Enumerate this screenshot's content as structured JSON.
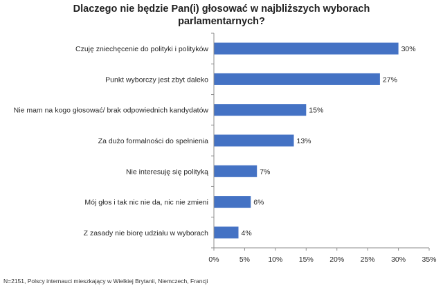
{
  "chart_data": {
    "type": "bar",
    "orientation": "horizontal",
    "title": "Dlaczego nie będzie Pan(i) głosować w najbliższych wyborach parlamentarnych?",
    "title_lines": [
      "Dlaczego nie będzie Pan(i) głosować w najbliższych wyborach",
      "parlamentarnych?"
    ],
    "categories": [
      "Czuję zniechęcenie do polityki i polityków",
      "Punkt wyborczy jest zbyt daleko",
      "Nie mam na kogo głosować/ brak odpowiednich kandydatów",
      "Za dużo formalności do spełnienia",
      "Nie interesuję się polityką",
      "Mój głos i tak nic nie da, nic nie zmieni",
      "Z zasady nie biorę udziału w wyborach"
    ],
    "values": [
      30,
      27,
      15,
      13,
      7,
      6,
      4
    ],
    "value_labels": [
      "30%",
      "27%",
      "15%",
      "13%",
      "7%",
      "6%",
      "4%"
    ],
    "xlim": [
      0,
      35
    ],
    "xticks": [
      0,
      5,
      10,
      15,
      20,
      25,
      30,
      35
    ],
    "xtick_labels": [
      "0%",
      "5%",
      "10%",
      "15%",
      "20%",
      "25%",
      "30%",
      "35%"
    ],
    "xlabel": "",
    "ylabel": "",
    "grid": false,
    "legend": "none",
    "colors": {
      "bar": "#4472c4",
      "axis": "#8c8c8c",
      "text": "#262626"
    }
  },
  "footnote": "N=2151, Polscy internauci mieszkający w Wielkiej Brytanii, Niemczech, Francji"
}
